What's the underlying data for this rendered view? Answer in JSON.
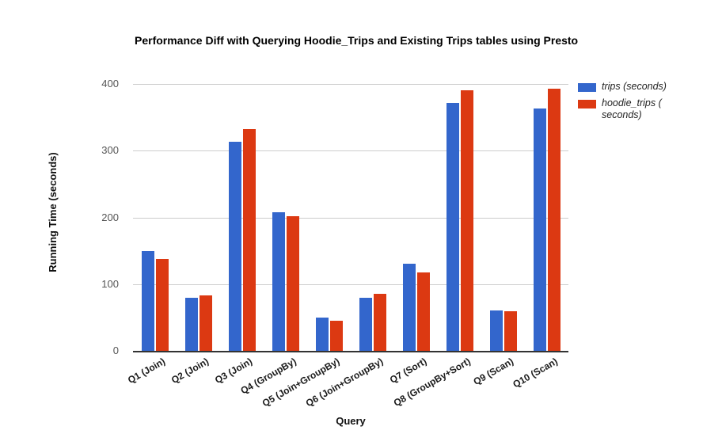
{
  "chart_data": {
    "type": "bar",
    "title": "Performance Diff with Querying Hoodie_Trips and Existing Trips tables using Presto",
    "xlabel": "Query",
    "ylabel": "Running Time (seconds)",
    "categories": [
      "Q1 (Join)",
      "Q2 (Join)",
      "Q3 (Join)",
      "Q4 (GroupBy)",
      "Q5 (Join+GroupBy)",
      "Q6 (Join+GroupBy)",
      "Q7 (Sort)",
      "Q8 (GroupBy+Sort)",
      "Q9 (Scan)",
      "Q10 (Scan)"
    ],
    "series": [
      {
        "name": "trips (seconds)",
        "color": "#3366CC",
        "values": [
          150,
          80,
          313,
          208,
          50,
          80,
          131,
          371,
          60,
          363
        ]
      },
      {
        "name": "hoodie_trips ( seconds)",
        "color": "#DC3912",
        "values": [
          138,
          83,
          332,
          202,
          45,
          85,
          117,
          391,
          59,
          393
        ]
      }
    ],
    "ylim": [
      0,
      400
    ],
    "yticks": [
      0,
      100,
      200,
      300,
      400
    ],
    "grid": true,
    "legend_position": "right",
    "colors": {
      "axis_line": "#333333",
      "gridline": "#cccccc",
      "tick_text": "#555555",
      "label_text": "#1a1a1a",
      "background": "#ffffff"
    }
  }
}
